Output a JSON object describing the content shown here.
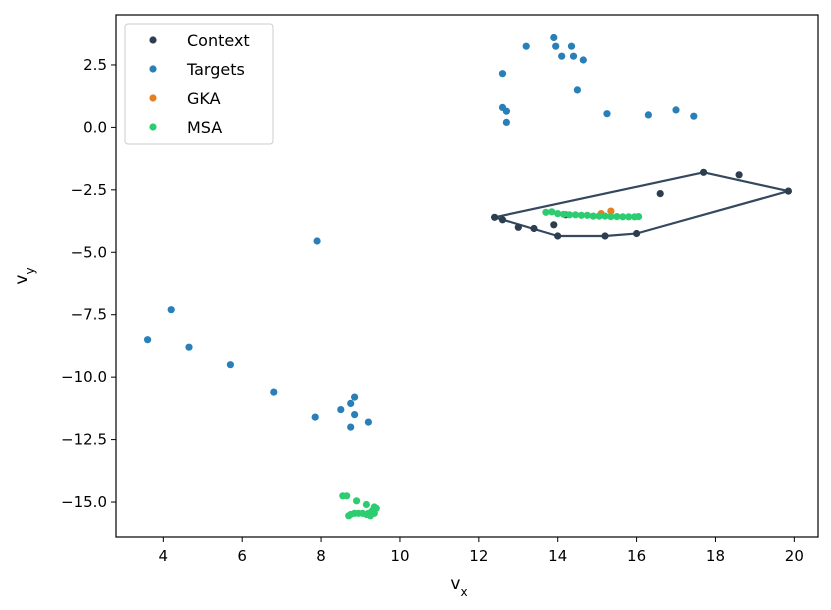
{
  "chart_data": {
    "type": "scatter",
    "title": "",
    "xlabel": "v",
    "xlabel_sub": "x",
    "ylabel": "v",
    "ylabel_sub": "y",
    "xlim": [
      2.8,
      20.6
    ],
    "ylim": [
      -16.4,
      4.5
    ],
    "xticks": [
      4,
      6,
      8,
      10,
      12,
      14,
      16,
      18,
      20
    ],
    "xtick_labels": [
      "4",
      "6",
      "8",
      "10",
      "12",
      "14",
      "16",
      "18",
      "20"
    ],
    "yticks": [
      2.5,
      0.0,
      -2.5,
      -5.0,
      -7.5,
      -10.0,
      -12.5,
      -15.0
    ],
    "ytick_labels": [
      "2.5",
      "0.0",
      "−2.5",
      "−5.0",
      "−7.5",
      "−10.0",
      "−12.5",
      "−15.0"
    ],
    "grid": false,
    "legend_position": "top-left",
    "series": [
      {
        "name": "Context",
        "color": "#2c3e50",
        "points": [
          [
            12.4,
            -3.6
          ],
          [
            12.6,
            -3.7
          ],
          [
            13.0,
            -4.0
          ],
          [
            13.4,
            -4.05
          ],
          [
            13.9,
            -3.9
          ],
          [
            14.0,
            -4.35
          ],
          [
            14.2,
            -3.5
          ],
          [
            15.2,
            -4.35
          ],
          [
            16.0,
            -4.25
          ],
          [
            16.6,
            -2.65
          ],
          [
            17.7,
            -1.8
          ],
          [
            18.6,
            -1.9
          ],
          [
            19.85,
            -2.55
          ]
        ]
      },
      {
        "name": "Targets",
        "color": "#2980b9",
        "points": [
          [
            13.9,
            3.6
          ],
          [
            13.95,
            3.25
          ],
          [
            14.35,
            3.25
          ],
          [
            13.2,
            3.25
          ],
          [
            14.1,
            2.85
          ],
          [
            14.4,
            2.85
          ],
          [
            14.65,
            2.7
          ],
          [
            12.6,
            2.15
          ],
          [
            14.5,
            1.5
          ],
          [
            12.6,
            0.8
          ],
          [
            12.7,
            0.65
          ],
          [
            15.25,
            0.55
          ],
          [
            16.3,
            0.5
          ],
          [
            17.0,
            0.7
          ],
          [
            17.45,
            0.45
          ],
          [
            12.7,
            0.2
          ],
          [
            7.9,
            -4.55
          ],
          [
            4.2,
            -7.3
          ],
          [
            3.6,
            -8.5
          ],
          [
            4.65,
            -8.8
          ],
          [
            5.7,
            -9.5
          ],
          [
            6.8,
            -10.6
          ],
          [
            8.85,
            -10.8
          ],
          [
            8.75,
            -11.05
          ],
          [
            8.5,
            -11.3
          ],
          [
            8.85,
            -11.5
          ],
          [
            7.85,
            -11.6
          ],
          [
            9.2,
            -11.8
          ],
          [
            8.75,
            -12.0
          ]
        ]
      },
      {
        "name": "GKA",
        "color": "#e67e22",
        "points": [
          [
            15.35,
            -3.35
          ],
          [
            15.1,
            -3.45
          ]
        ]
      },
      {
        "name": "MSA",
        "color": "#2ecc71",
        "points": [
          [
            13.7,
            -3.4
          ],
          [
            13.85,
            -3.38
          ],
          [
            14.0,
            -3.45
          ],
          [
            14.15,
            -3.48
          ],
          [
            14.3,
            -3.5
          ],
          [
            14.45,
            -3.5
          ],
          [
            14.6,
            -3.52
          ],
          [
            14.75,
            -3.52
          ],
          [
            14.9,
            -3.55
          ],
          [
            15.05,
            -3.55
          ],
          [
            15.2,
            -3.55
          ],
          [
            15.35,
            -3.57
          ],
          [
            15.5,
            -3.57
          ],
          [
            15.65,
            -3.58
          ],
          [
            15.8,
            -3.58
          ],
          [
            15.95,
            -3.58
          ],
          [
            16.05,
            -3.57
          ],
          [
            8.55,
            -14.75
          ],
          [
            8.65,
            -14.75
          ],
          [
            8.9,
            -14.95
          ],
          [
            9.15,
            -15.1
          ],
          [
            9.35,
            -15.2
          ],
          [
            9.4,
            -15.25
          ],
          [
            9.3,
            -15.35
          ],
          [
            9.2,
            -15.45
          ],
          [
            9.15,
            -15.5
          ],
          [
            9.05,
            -15.45
          ],
          [
            8.95,
            -15.45
          ],
          [
            8.85,
            -15.45
          ],
          [
            8.75,
            -15.5
          ],
          [
            8.7,
            -15.55
          ],
          [
            9.25,
            -15.55
          ],
          [
            9.35,
            -15.45
          ]
        ]
      }
    ],
    "hull": {
      "color": "#34495e",
      "points": [
        [
          12.4,
          -3.6
        ],
        [
          14.0,
          -4.35
        ],
        [
          15.2,
          -4.35
        ],
        [
          16.0,
          -4.25
        ],
        [
          19.85,
          -2.55
        ],
        [
          17.7,
          -1.8
        ],
        [
          12.4,
          -3.6
        ]
      ]
    }
  }
}
